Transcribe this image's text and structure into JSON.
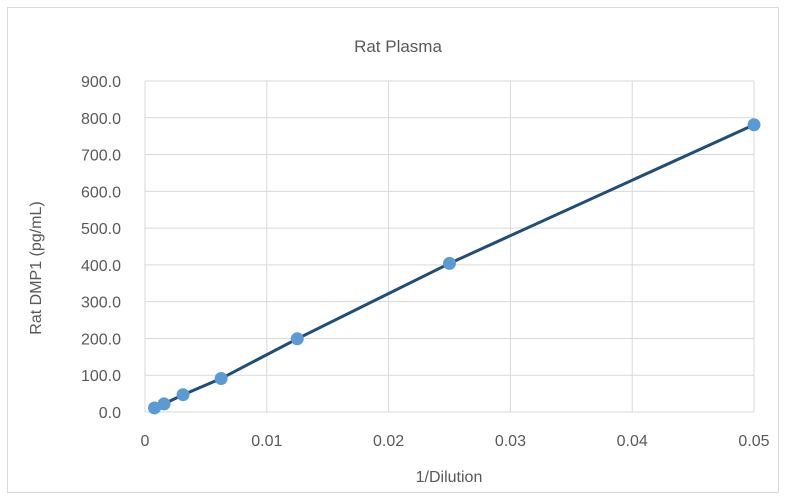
{
  "chart_data": {
    "type": "scatter",
    "title": "Rat Plasma",
    "xlabel": "1/Dilution",
    "ylabel": "Rat DMP1  (pg/mL)",
    "xlim": [
      0,
      0.05
    ],
    "ylim": [
      0,
      900
    ],
    "x_ticks": [
      "0",
      "0.01",
      "0.02",
      "0.03",
      "0.04",
      "0.05"
    ],
    "y_ticks": [
      "0.0",
      "100.0",
      "200.0",
      "300.0",
      "400.0",
      "500.0",
      "600.0",
      "700.0",
      "800.0",
      "900.0"
    ],
    "grid": true,
    "legend": "none",
    "colors": {
      "marker": "#5b9bd5",
      "line": "#1f4e79",
      "grid": "#d9d9d9",
      "text": "#595959"
    },
    "series": [
      {
        "points": [
          {
            "x": 0.00078,
            "y": 11
          },
          {
            "x": 0.00156,
            "y": 22
          },
          {
            "x": 0.003125,
            "y": 47
          },
          {
            "x": 0.00625,
            "y": 91
          },
          {
            "x": 0.0125,
            "y": 199
          },
          {
            "x": 0.025,
            "y": 404
          },
          {
            "x": 0.05,
            "y": 781
          }
        ]
      }
    ]
  }
}
